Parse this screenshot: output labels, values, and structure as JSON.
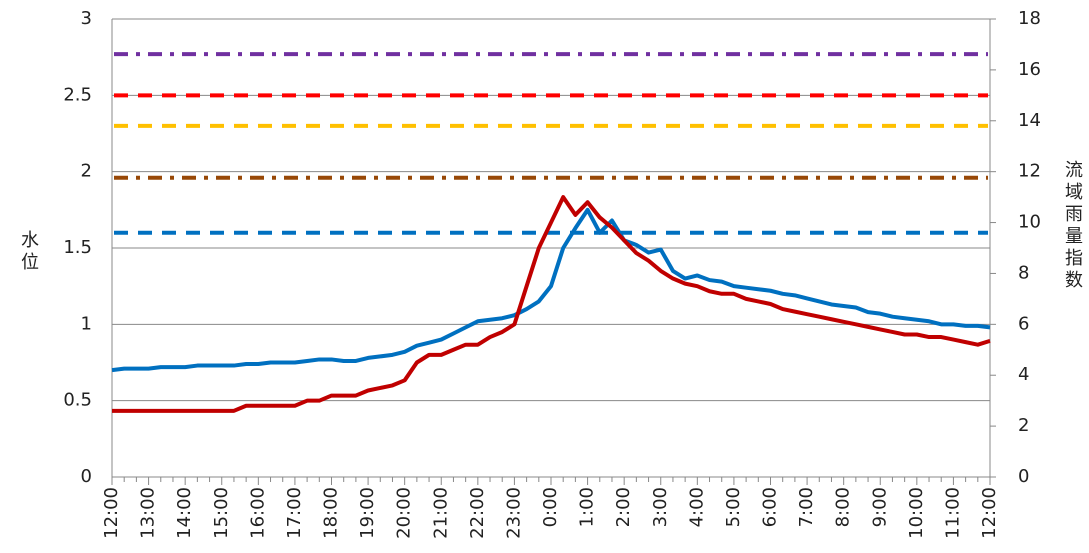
{
  "chart_data": {
    "type": "line",
    "y_label": "水位",
    "y2_label": "流域雨量指数",
    "categories": [
      "12:00",
      null,
      null,
      "13:00",
      null,
      null,
      "14:00",
      null,
      null,
      "15:00",
      null,
      null,
      "16:00",
      null,
      null,
      "17:00",
      null,
      null,
      "18:00",
      null,
      null,
      "19:00",
      null,
      null,
      "20:00",
      null,
      null,
      "21:00",
      null,
      null,
      "22:00",
      null,
      null,
      "23:00",
      null,
      null,
      "0:00",
      null,
      null,
      "1:00",
      null,
      null,
      "2:00",
      null,
      null,
      "3:00",
      null,
      null,
      "4:00",
      null,
      null,
      "5:00",
      null,
      null,
      "6:00",
      null,
      null,
      "7:00",
      null,
      null,
      "8:00",
      null,
      null,
      "9:00",
      null,
      null,
      "10:00",
      null,
      null,
      "11:00",
      null,
      null,
      "12:00"
    ],
    "series": [
      {
        "color": "#0070c0",
        "axis": "y",
        "values": [
          0.7,
          0.71,
          0.71,
          0.71,
          0.72,
          0.72,
          0.72,
          0.73,
          0.73,
          0.73,
          0.73,
          0.74,
          0.74,
          0.75,
          0.75,
          0.75,
          0.76,
          0.77,
          0.77,
          0.76,
          0.76,
          0.78,
          0.79,
          0.8,
          0.82,
          0.86,
          0.88,
          0.9,
          0.94,
          0.98,
          1.02,
          1.03,
          1.04,
          1.06,
          1.1,
          1.15,
          1.25,
          1.5,
          1.63,
          1.75,
          1.6,
          1.68,
          1.55,
          1.52,
          1.47,
          1.49,
          1.35,
          1.3,
          1.32,
          1.29,
          1.28,
          1.25,
          1.24,
          1.23,
          1.22,
          1.2,
          1.19,
          1.17,
          1.15,
          1.13,
          1.12,
          1.11,
          1.08,
          1.07,
          1.05,
          1.04,
          1.03,
          1.02,
          1.0,
          1.0,
          0.99,
          0.99,
          0.98
        ]
      },
      {
        "color": "#c00000",
        "axis": "y2",
        "values": [
          2.6,
          2.6,
          2.6,
          2.6,
          2.6,
          2.6,
          2.6,
          2.6,
          2.6,
          2.6,
          2.6,
          2.8,
          2.8,
          2.8,
          2.8,
          2.8,
          3.0,
          3.0,
          3.2,
          3.2,
          3.2,
          3.4,
          3.5,
          3.6,
          3.8,
          4.5,
          4.8,
          4.8,
          5.0,
          5.2,
          5.2,
          5.5,
          5.7,
          6.0,
          7.5,
          9.0,
          10.0,
          11.0,
          10.3,
          10.8,
          10.2,
          9.8,
          9.3,
          8.8,
          8.5,
          8.1,
          7.8,
          7.6,
          7.5,
          7.3,
          7.2,
          7.2,
          7.0,
          6.9,
          6.8,
          6.6,
          6.5,
          6.4,
          6.3,
          6.2,
          6.1,
          6.0,
          5.9,
          5.8,
          5.7,
          5.6,
          5.6,
          5.5,
          5.5,
          5.4,
          5.3,
          5.2,
          5.35
        ]
      }
    ],
    "reference_lines": [
      {
        "value": 2.77,
        "color": "#7030a0",
        "dash": "dashdot"
      },
      {
        "value": 2.5,
        "color": "#ff0000",
        "dash": "dash"
      },
      {
        "value": 2.3,
        "color": "#ffc000",
        "dash": "dash"
      },
      {
        "value": 1.96,
        "color": "#984807",
        "dash": "dashdot"
      },
      {
        "value": 1.6,
        "color": "#0070c0",
        "dash": "dash"
      }
    ],
    "ylim": [
      0,
      3
    ],
    "yticks": [
      0,
      0.5,
      1,
      1.5,
      2,
      2.5,
      3
    ],
    "y2lim": [
      0,
      18
    ],
    "y2ticks": [
      0,
      2,
      4,
      6,
      8,
      10,
      12,
      14,
      16,
      18
    ],
    "grid": true
  }
}
